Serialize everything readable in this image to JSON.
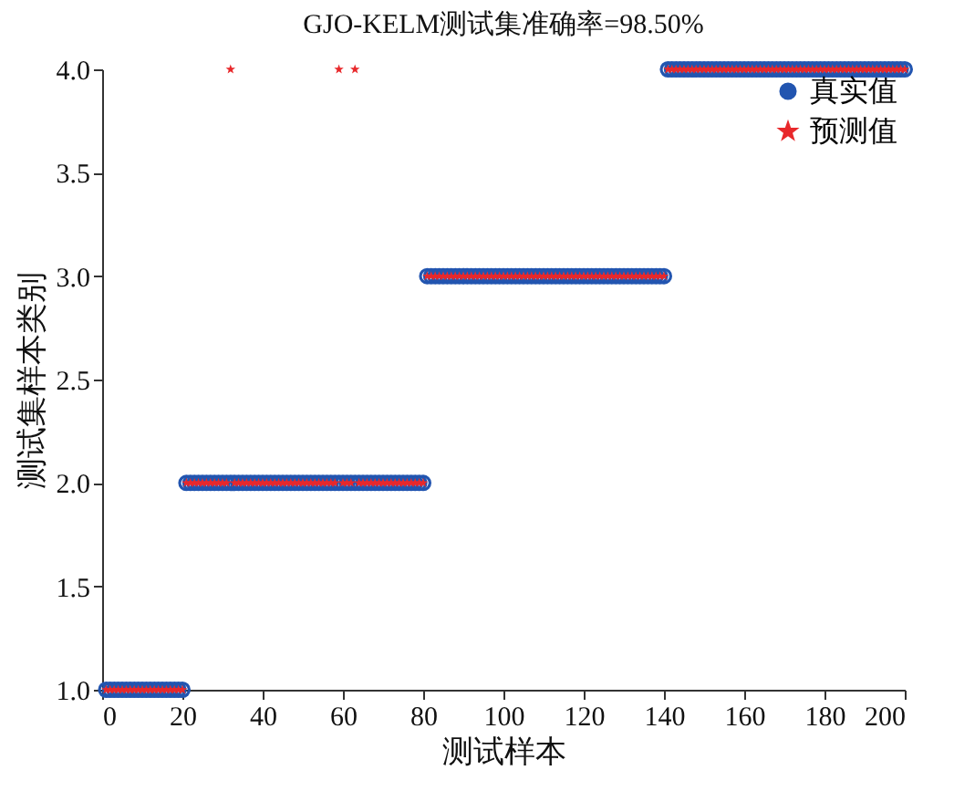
{
  "chart_data": {
    "type": "scatter",
    "title": "GJO-KELM测试集准确率=98.50%",
    "xlabel": "测试样本",
    "ylabel": "测试集样本类别",
    "x": [
      1,
      2,
      3,
      4,
      5,
      6,
      7,
      8,
      9,
      10,
      11,
      12,
      13,
      14,
      15,
      16,
      17,
      18,
      19,
      20,
      21,
      22,
      23,
      24,
      25,
      26,
      27,
      28,
      29,
      30,
      31,
      32,
      33,
      34,
      35,
      36,
      37,
      38,
      39,
      40,
      41,
      42,
      43,
      44,
      45,
      46,
      47,
      48,
      49,
      50,
      51,
      52,
      53,
      54,
      55,
      56,
      57,
      58,
      59,
      60,
      61,
      62,
      63,
      64,
      65,
      66,
      67,
      68,
      69,
      70,
      71,
      72,
      73,
      74,
      75,
      76,
      77,
      78,
      79,
      80,
      81,
      82,
      83,
      84,
      85,
      86,
      87,
      88,
      89,
      90,
      91,
      92,
      93,
      94,
      95,
      96,
      97,
      98,
      99,
      100,
      101,
      102,
      103,
      104,
      105,
      106,
      107,
      108,
      109,
      110,
      111,
      112,
      113,
      114,
      115,
      116,
      117,
      118,
      119,
      120,
      121,
      122,
      123,
      124,
      125,
      126,
      127,
      128,
      129,
      130,
      131,
      132,
      133,
      134,
      135,
      136,
      137,
      138,
      139,
      140,
      141,
      142,
      143,
      144,
      145,
      146,
      147,
      148,
      149,
      150,
      151,
      152,
      153,
      154,
      155,
      156,
      157,
      158,
      159,
      160,
      161,
      162,
      163,
      164,
      165,
      166,
      167,
      168,
      169,
      170,
      171,
      172,
      173,
      174,
      175,
      176,
      177,
      178,
      179,
      180,
      181,
      182,
      183,
      184,
      185,
      186,
      187,
      188,
      189,
      190,
      191,
      192,
      193,
      194,
      195,
      196,
      197,
      198,
      199,
      200
    ],
    "series": [
      {
        "name": "真实值",
        "color": "#2255b0",
        "marker": "circle",
        "values": [
          1,
          1,
          1,
          1,
          1,
          1,
          1,
          1,
          1,
          1,
          1,
          1,
          1,
          1,
          1,
          1,
          1,
          1,
          1,
          1,
          2,
          2,
          2,
          2,
          2,
          2,
          2,
          2,
          2,
          2,
          2,
          2,
          2,
          2,
          2,
          2,
          2,
          2,
          2,
          2,
          2,
          2,
          2,
          2,
          2,
          2,
          2,
          2,
          2,
          2,
          2,
          2,
          2,
          2,
          2,
          2,
          2,
          2,
          2,
          2,
          2,
          2,
          2,
          2,
          2,
          2,
          2,
          2,
          2,
          2,
          2,
          2,
          2,
          2,
          2,
          2,
          2,
          2,
          2,
          2,
          3,
          3,
          3,
          3,
          3,
          3,
          3,
          3,
          3,
          3,
          3,
          3,
          3,
          3,
          3,
          3,
          3,
          3,
          3,
          3,
          3,
          3,
          3,
          3,
          3,
          3,
          3,
          3,
          3,
          3,
          3,
          3,
          3,
          3,
          3,
          3,
          3,
          3,
          3,
          3,
          3,
          3,
          3,
          3,
          3,
          3,
          3,
          3,
          3,
          3,
          3,
          3,
          3,
          3,
          3,
          3,
          3,
          3,
          3,
          3,
          4,
          4,
          4,
          4,
          4,
          4,
          4,
          4,
          4,
          4,
          4,
          4,
          4,
          4,
          4,
          4,
          4,
          4,
          4,
          4,
          4,
          4,
          4,
          4,
          4,
          4,
          4,
          4,
          4,
          4,
          4,
          4,
          4,
          4,
          4,
          4,
          4,
          4,
          4,
          4,
          4,
          4,
          4,
          4,
          4,
          4,
          4,
          4,
          4,
          4,
          4,
          4,
          4,
          4,
          4,
          4,
          4,
          4,
          4,
          4
        ]
      },
      {
        "name": "预测值",
        "color": "#e8282b",
        "marker": "star",
        "values": [
          1,
          1,
          1,
          1,
          1,
          1,
          1,
          1,
          1,
          1,
          1,
          1,
          1,
          1,
          1,
          1,
          1,
          1,
          1,
          1,
          2,
          2,
          2,
          2,
          2,
          2,
          2,
          2,
          2,
          2,
          2,
          4,
          2,
          2,
          2,
          2,
          2,
          2,
          2,
          2,
          2,
          2,
          2,
          2,
          2,
          2,
          2,
          2,
          2,
          2,
          2,
          2,
          2,
          2,
          2,
          2,
          2,
          2,
          4,
          2,
          2,
          2,
          4,
          2,
          2,
          2,
          2,
          2,
          2,
          2,
          2,
          2,
          2,
          2,
          2,
          2,
          2,
          2,
          2,
          2,
          3,
          3,
          3,
          3,
          3,
          3,
          3,
          3,
          3,
          3,
          3,
          3,
          3,
          3,
          3,
          3,
          3,
          3,
          3,
          3,
          3,
          3,
          3,
          3,
          3,
          3,
          3,
          3,
          3,
          3,
          3,
          3,
          3,
          3,
          3,
          3,
          3,
          3,
          3,
          3,
          3,
          3,
          3,
          3,
          3,
          3,
          3,
          3,
          3,
          3,
          3,
          3,
          3,
          3,
          3,
          3,
          3,
          3,
          3,
          3,
          4,
          4,
          4,
          4,
          4,
          4,
          4,
          4,
          4,
          4,
          4,
          4,
          4,
          4,
          4,
          4,
          4,
          4,
          4,
          4,
          4,
          4,
          4,
          4,
          4,
          4,
          4,
          4,
          4,
          4,
          4,
          4,
          4,
          4,
          4,
          4,
          4,
          4,
          4,
          4,
          4,
          4,
          4,
          4,
          4,
          4,
          4,
          4,
          4,
          4,
          4,
          4,
          4,
          4,
          4,
          4,
          4,
          4,
          4,
          4
        ]
      }
    ],
    "xlim": [
      0,
      200
    ],
    "xticks": [
      0,
      20,
      40,
      60,
      80,
      100,
      120,
      140,
      160,
      180,
      200
    ],
    "ylim": [
      1,
      4
    ],
    "yticks": [
      {
        "value": 1,
        "label": "1.0"
      },
      {
        "value": 1.5,
        "label": "1.5"
      },
      {
        "value": 2,
        "label": "2.0"
      },
      {
        "value": 2.5,
        "label": "2.5"
      },
      {
        "value": 3,
        "label": "3.0"
      },
      {
        "value": 3.5,
        "label": "3.5"
      },
      {
        "value": 4,
        "label": "4.0"
      }
    ],
    "grid": false,
    "legend": "top right"
  }
}
